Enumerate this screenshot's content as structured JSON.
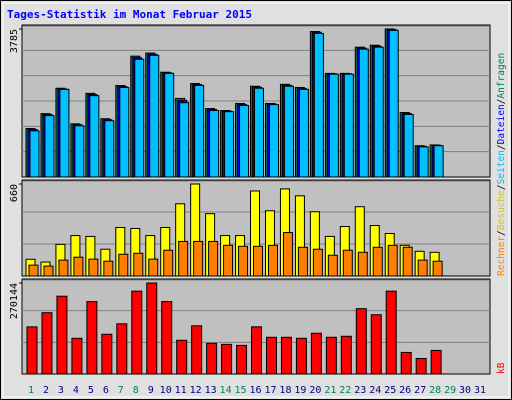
{
  "chart_data": [
    {
      "type": "bar",
      "title": "Tages-Statistik im Monat Februar 2015",
      "ylim": [
        0,
        3785
      ],
      "yticks": [
        3785
      ],
      "series": [
        {
          "name": "Anfragen",
          "color": "#00805c",
          "values": [
            1240,
            1620,
            2270,
            1360,
            2140,
            1490,
            2340,
            3090,
            3170,
            2680,
            2010,
            2390,
            1750,
            1700,
            1880,
            2320,
            1880,
            2370,
            2290,
            3720,
            2650,
            2650,
            3320,
            3370,
            3785,
            1650,
            800,
            820,
            null,
            null,
            null
          ]
        },
        {
          "name": "Dateien",
          "color": "#0000ff",
          "values": [
            1215,
            1600,
            2250,
            1335,
            2110,
            1465,
            2315,
            3050,
            3140,
            2665,
            1960,
            2365,
            1725,
            1685,
            1855,
            2295,
            1865,
            2345,
            2265,
            3700,
            2640,
            2640,
            3295,
            3345,
            3770,
            1625,
            785,
            810,
            null,
            null,
            null
          ]
        },
        {
          "name": "Seiten",
          "color": "#00c0ff",
          "values": [
            1180,
            1570,
            2240,
            1310,
            2080,
            1440,
            2290,
            3010,
            3110,
            2650,
            1900,
            2340,
            1700,
            1670,
            1830,
            2270,
            1850,
            2320,
            2240,
            3670,
            2630,
            2630,
            3270,
            3320,
            3750,
            1600,
            770,
            800,
            null,
            null,
            null
          ]
        }
      ]
    },
    {
      "type": "bar",
      "ylim": [
        0,
        660
      ],
      "yticks": [
        660
      ],
      "separator": "/",
      "series": [
        {
          "name": "Besuche",
          "color": "#ffff00",
          "values": [
            120,
            100,
            227,
            290,
            284,
            192,
            348,
            341,
            290,
            348,
            518,
            660,
            447,
            290,
            290,
            610,
            468,
            625,
            575,
            461,
            284,
            355,
            497,
            362,
            305,
            220,
            177,
            170,
            null,
            null,
            null
          ]
        },
        {
          "name": "Rechner",
          "color": "#ff8000",
          "values": [
            78,
            71,
            114,
            135,
            121,
            106,
            156,
            163,
            121,
            185,
            248,
            248,
            248,
            220,
            213,
            213,
            220,
            312,
            206,
            192,
            149,
            185,
            170,
            206,
            220,
            206,
            114,
            106,
            null,
            null,
            null
          ]
        }
      ]
    },
    {
      "type": "bar",
      "ylim": [
        0,
        270144
      ],
      "yticks": [
        270144
      ],
      "series": [
        {
          "name": "kB",
          "color": "#ff0000",
          "values": [
            140000,
            182000,
            231000,
            106000,
            215000,
            118000,
            149000,
            246000,
            270144,
            215000,
            100000,
            143000,
            91000,
            88000,
            85000,
            140000,
            109000,
            109000,
            106000,
            121000,
            109000,
            112000,
            194000,
            176000,
            246000,
            64000,
            46000,
            70000,
            null,
            null,
            null
          ]
        }
      ],
      "categories": [
        "1",
        "2",
        "3",
        "4",
        "5",
        "6",
        "7",
        "8",
        "9",
        "10",
        "11",
        "12",
        "13",
        "14",
        "15",
        "16",
        "17",
        "18",
        "19",
        "20",
        "21",
        "22",
        "23",
        "24",
        "25",
        "26",
        "27",
        "28",
        "29",
        "30",
        "31"
      ],
      "category_colors": [
        "#00805c",
        "#000080",
        "#000080",
        "#000080",
        "#000080",
        "#000080",
        "#00805c",
        "#00805c",
        "#000080",
        "#000080",
        "#000080",
        "#000080",
        "#000080",
        "#00805c",
        "#00805c",
        "#000080",
        "#000080",
        "#000080",
        "#000080",
        "#000080",
        "#00805c",
        "#00805c",
        "#000080",
        "#000080",
        "#000080",
        "#000080",
        "#000080",
        "#00805c",
        "#00805c",
        "#000080",
        "#000080"
      ]
    }
  ]
}
